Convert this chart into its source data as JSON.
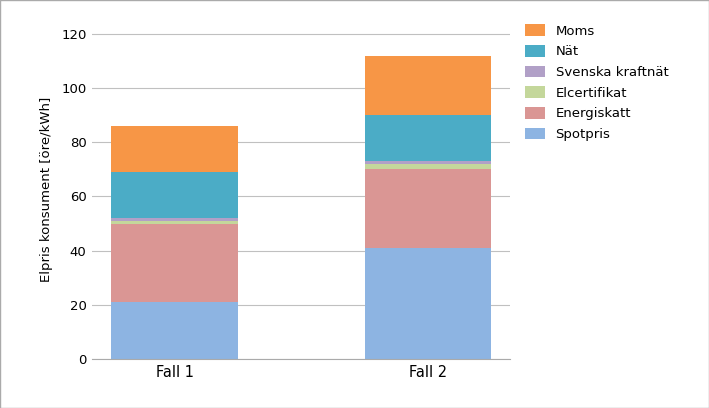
{
  "categories": [
    "Fall 1",
    "Fall 2"
  ],
  "series": [
    {
      "label": "Spotpris",
      "values": [
        21,
        41
      ],
      "color": "#8DB4E2"
    },
    {
      "label": "Energiskatt",
      "values": [
        29,
        29
      ],
      "color": "#DA9694"
    },
    {
      "label": "Elcertifikat",
      "values": [
        1,
        2
      ],
      "color": "#C4D79B"
    },
    {
      "label": "Svenska kraftnät",
      "values": [
        1,
        1
      ],
      "color": "#B1A0C7"
    },
    {
      "label": "Nät",
      "values": [
        17,
        17
      ],
      "color": "#4BACC6"
    },
    {
      "label": "Moms",
      "values": [
        17,
        22
      ],
      "color": "#F79646"
    }
  ],
  "ylabel": "Elpris konsument [öre/kWh]",
  "ylim": [
    0,
    125
  ],
  "yticks": [
    0,
    20,
    40,
    60,
    80,
    100,
    120
  ],
  "bar_width": 0.5,
  "background_color": "#FFFFFF",
  "grid_color": "#C0C0C0",
  "legend_order": [
    5,
    4,
    3,
    2,
    1,
    0
  ],
  "border_color": "#AAAAAA"
}
